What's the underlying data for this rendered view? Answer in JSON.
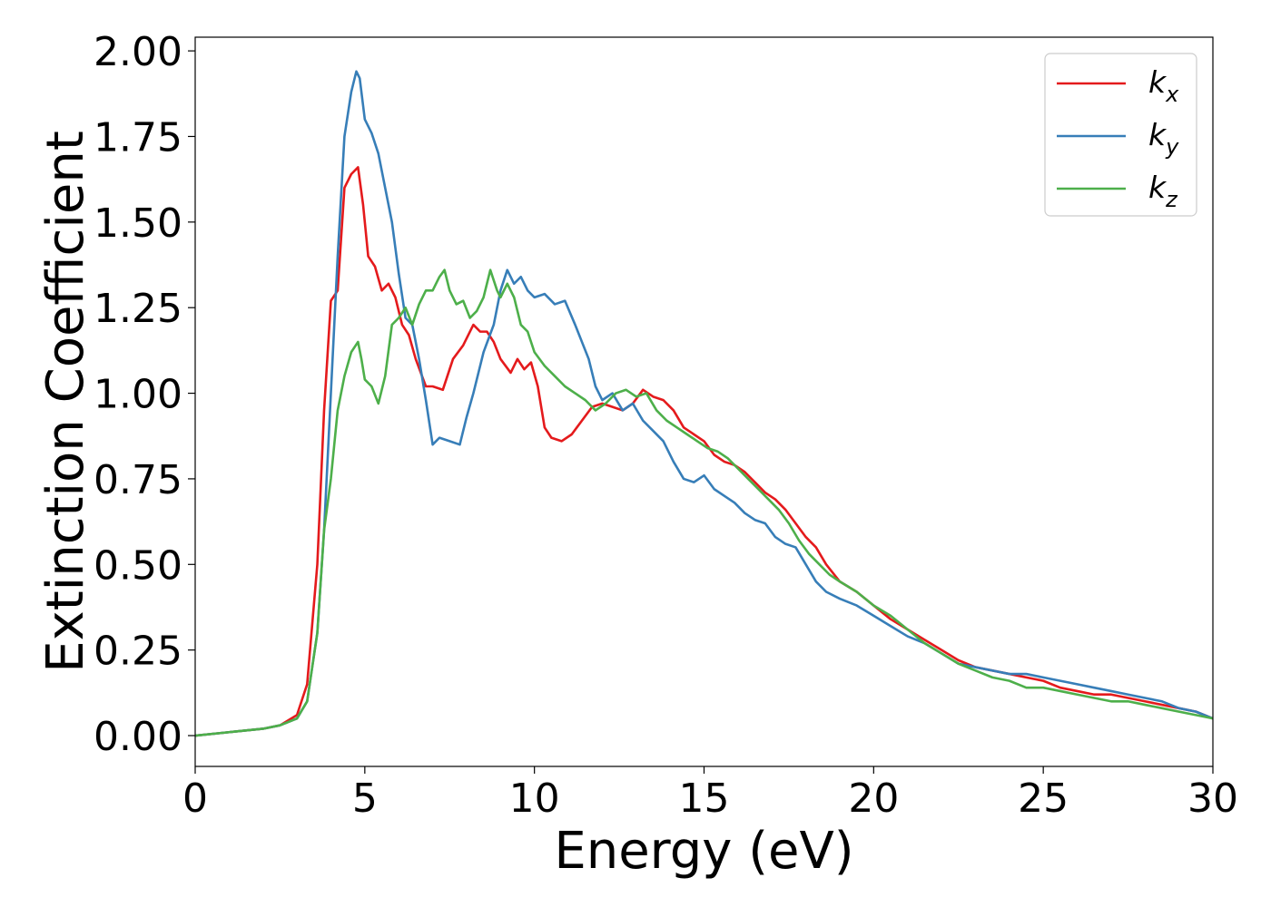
{
  "chart_data": {
    "type": "line",
    "title": "",
    "xlabel": "Energy (eV)",
    "ylabel": "Extinction Coefficient",
    "xlim": [
      0,
      30
    ],
    "ylim": [
      -0.09,
      2.04
    ],
    "xticks": [
      0,
      5,
      10,
      15,
      20,
      25,
      30
    ],
    "xtick_labels": [
      "0",
      "5",
      "10",
      "15",
      "20",
      "25",
      "30"
    ],
    "yticks": [
      0,
      0.25,
      0.5,
      0.75,
      1.0,
      1.25,
      1.5,
      1.75,
      2.0
    ],
    "ytick_labels": [
      "0.00",
      "0.25",
      "0.50",
      "0.75",
      "1.00",
      "1.25",
      "1.50",
      "1.75",
      "2.00"
    ],
    "grid": false,
    "legend_position": "top-right",
    "series": [
      {
        "name": "k",
        "subscript": "x",
        "color": "#e41a1c",
        "x": [
          0,
          1,
          2,
          2.5,
          3,
          3.3,
          3.6,
          3.8,
          4.0,
          4.2,
          4.4,
          4.6,
          4.8,
          4.95,
          5.1,
          5.3,
          5.5,
          5.7,
          5.9,
          6.1,
          6.3,
          6.5,
          6.8,
          7.0,
          7.3,
          7.6,
          7.9,
          8.2,
          8.4,
          8.6,
          8.8,
          9.0,
          9.3,
          9.5,
          9.7,
          9.9,
          10.1,
          10.3,
          10.5,
          10.8,
          11.1,
          11.4,
          11.7,
          12.0,
          12.3,
          12.6,
          12.9,
          13.2,
          13.5,
          13.8,
          14.1,
          14.4,
          14.7,
          15.0,
          15.3,
          15.6,
          15.9,
          16.2,
          16.5,
          16.8,
          17.1,
          17.4,
          17.7,
          18.0,
          18.3,
          18.6,
          19.0,
          19.5,
          20.0,
          20.5,
          21.0,
          21.5,
          22.0,
          22.5,
          23.0,
          23.5,
          24.0,
          24.5,
          25.0,
          25.5,
          26.0,
          26.5,
          27.0,
          27.5,
          28.0,
          28.5,
          29.0,
          29.5,
          30.0
        ],
        "y": [
          0.0,
          0.01,
          0.02,
          0.03,
          0.06,
          0.15,
          0.5,
          0.95,
          1.27,
          1.3,
          1.6,
          1.64,
          1.66,
          1.55,
          1.4,
          1.37,
          1.3,
          1.32,
          1.28,
          1.2,
          1.17,
          1.1,
          1.02,
          1.02,
          1.01,
          1.1,
          1.14,
          1.2,
          1.18,
          1.18,
          1.15,
          1.1,
          1.06,
          1.1,
          1.07,
          1.09,
          1.02,
          0.9,
          0.87,
          0.86,
          0.88,
          0.92,
          0.96,
          0.97,
          0.96,
          0.95,
          0.97,
          1.01,
          0.99,
          0.98,
          0.95,
          0.9,
          0.88,
          0.86,
          0.82,
          0.8,
          0.79,
          0.77,
          0.74,
          0.71,
          0.69,
          0.66,
          0.62,
          0.58,
          0.55,
          0.5,
          0.45,
          0.42,
          0.38,
          0.34,
          0.31,
          0.28,
          0.25,
          0.22,
          0.2,
          0.19,
          0.18,
          0.17,
          0.16,
          0.14,
          0.13,
          0.12,
          0.12,
          0.11,
          0.1,
          0.09,
          0.08,
          0.07,
          0.05
        ]
      },
      {
        "name": "k",
        "subscript": "y",
        "color": "#377eb8",
        "x": [
          0,
          1,
          2,
          2.5,
          3,
          3.3,
          3.6,
          3.8,
          4.0,
          4.2,
          4.4,
          4.6,
          4.75,
          4.85,
          5.0,
          5.2,
          5.4,
          5.6,
          5.8,
          6.0,
          6.2,
          6.4,
          6.6,
          6.8,
          7.0,
          7.2,
          7.5,
          7.8,
          8.0,
          8.2,
          8.5,
          8.8,
          9.0,
          9.2,
          9.4,
          9.6,
          9.8,
          10.0,
          10.3,
          10.6,
          10.9,
          11.2,
          11.4,
          11.6,
          11.8,
          12.0,
          12.3,
          12.6,
          12.9,
          13.2,
          13.5,
          13.8,
          14.1,
          14.4,
          14.7,
          15.0,
          15.3,
          15.6,
          15.9,
          16.2,
          16.5,
          16.8,
          17.1,
          17.4,
          17.7,
          18.0,
          18.3,
          18.6,
          19.0,
          19.5,
          20.0,
          20.5,
          21.0,
          21.5,
          22.0,
          22.5,
          23.0,
          23.5,
          24.0,
          24.5,
          25.0,
          25.5,
          26.0,
          26.5,
          27.0,
          27.5,
          28.0,
          28.5,
          29.0,
          29.5,
          30.0
        ],
        "y": [
          0.0,
          0.01,
          0.02,
          0.03,
          0.05,
          0.1,
          0.3,
          0.6,
          1.0,
          1.4,
          1.75,
          1.88,
          1.94,
          1.92,
          1.8,
          1.76,
          1.7,
          1.6,
          1.5,
          1.35,
          1.22,
          1.2,
          1.1,
          0.98,
          0.85,
          0.87,
          0.86,
          0.85,
          0.93,
          1.0,
          1.12,
          1.2,
          1.3,
          1.36,
          1.32,
          1.34,
          1.3,
          1.28,
          1.29,
          1.26,
          1.27,
          1.2,
          1.15,
          1.1,
          1.02,
          0.98,
          1.0,
          0.95,
          0.97,
          0.92,
          0.89,
          0.86,
          0.8,
          0.75,
          0.74,
          0.76,
          0.72,
          0.7,
          0.68,
          0.65,
          0.63,
          0.62,
          0.58,
          0.56,
          0.55,
          0.5,
          0.45,
          0.42,
          0.4,
          0.38,
          0.35,
          0.32,
          0.29,
          0.27,
          0.24,
          0.21,
          0.2,
          0.19,
          0.18,
          0.18,
          0.17,
          0.16,
          0.15,
          0.14,
          0.13,
          0.12,
          0.11,
          0.1,
          0.08,
          0.07,
          0.05
        ]
      },
      {
        "name": "k",
        "subscript": "z",
        "color": "#4daf4a",
        "x": [
          0,
          1,
          2,
          2.5,
          3,
          3.3,
          3.6,
          3.8,
          4.0,
          4.2,
          4.4,
          4.6,
          4.8,
          4.9,
          5.0,
          5.2,
          5.4,
          5.6,
          5.8,
          6.0,
          6.2,
          6.4,
          6.6,
          6.8,
          7.0,
          7.2,
          7.35,
          7.5,
          7.7,
          7.9,
          8.1,
          8.3,
          8.5,
          8.7,
          8.9,
          9.0,
          9.2,
          9.4,
          9.6,
          9.8,
          10.0,
          10.3,
          10.6,
          10.9,
          11.2,
          11.5,
          11.8,
          12.1,
          12.4,
          12.7,
          13.0,
          13.3,
          13.6,
          13.9,
          14.2,
          14.5,
          14.8,
          15.1,
          15.4,
          15.7,
          16.0,
          16.3,
          16.6,
          16.9,
          17.2,
          17.5,
          17.8,
          18.1,
          18.4,
          18.7,
          19.0,
          19.5,
          20.0,
          20.5,
          21.0,
          21.5,
          22.0,
          22.5,
          23.0,
          23.5,
          24.0,
          24.5,
          25.0,
          25.5,
          26.0,
          26.5,
          27.0,
          27.5,
          28.0,
          28.5,
          29.0,
          29.5,
          30.0
        ],
        "y": [
          0.0,
          0.01,
          0.02,
          0.03,
          0.05,
          0.1,
          0.3,
          0.6,
          0.75,
          0.95,
          1.05,
          1.12,
          1.15,
          1.1,
          1.04,
          1.02,
          0.97,
          1.05,
          1.2,
          1.22,
          1.25,
          1.2,
          1.26,
          1.3,
          1.3,
          1.34,
          1.36,
          1.3,
          1.26,
          1.27,
          1.22,
          1.24,
          1.28,
          1.36,
          1.3,
          1.28,
          1.32,
          1.28,
          1.2,
          1.18,
          1.12,
          1.08,
          1.05,
          1.02,
          1.0,
          0.98,
          0.95,
          0.97,
          1.0,
          1.01,
          0.99,
          1.0,
          0.95,
          0.92,
          0.9,
          0.88,
          0.86,
          0.84,
          0.83,
          0.81,
          0.78,
          0.75,
          0.72,
          0.69,
          0.66,
          0.62,
          0.57,
          0.53,
          0.5,
          0.47,
          0.45,
          0.42,
          0.38,
          0.35,
          0.31,
          0.27,
          0.24,
          0.21,
          0.19,
          0.17,
          0.16,
          0.14,
          0.14,
          0.13,
          0.12,
          0.11,
          0.1,
          0.1,
          0.09,
          0.08,
          0.07,
          0.06,
          0.05
        ]
      }
    ]
  }
}
